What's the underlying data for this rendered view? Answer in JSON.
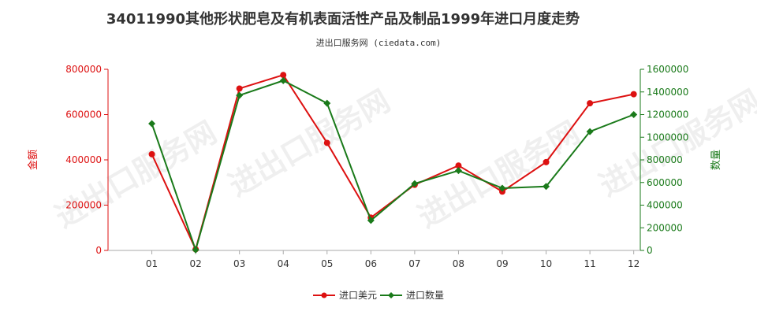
{
  "chart_data": {
    "type": "line",
    "title": "34011990其他形状肥皂及有机表面活性产品及制品1999年进口月度走势",
    "subtitle": "进出口服务网 (ciedata.com)",
    "watermark": "进出口服务网",
    "categories": [
      "01",
      "02",
      "03",
      "04",
      "05",
      "06",
      "07",
      "08",
      "09",
      "10",
      "11",
      "12"
    ],
    "ylabel_left": "金额",
    "ylabel_right": "数量",
    "ylim_left": [
      0,
      800000
    ],
    "ylim_right": [
      0,
      1600000
    ],
    "yticks_left": [
      "0",
      "200000",
      "400000",
      "600000",
      "800000"
    ],
    "yticks_right": [
      "0",
      "200000",
      "400000",
      "600000",
      "800000",
      "1000000",
      "1200000",
      "1400000",
      "1600000"
    ],
    "left_color": "#dd1111",
    "right_color": "#1a7a1a",
    "grid": false,
    "legend_position": "bottom-center",
    "series": [
      {
        "name": "进口美元",
        "axis": "left",
        "color": "#dd1111",
        "values": [
          425000,
          5000,
          715000,
          775000,
          475000,
          145000,
          290000,
          375000,
          260000,
          390000,
          650000,
          690000
        ]
      },
      {
        "name": "进口数量",
        "axis": "right",
        "color": "#1a7a1a",
        "values": [
          1120000,
          5000,
          1370000,
          1500000,
          1300000,
          265000,
          590000,
          705000,
          550000,
          565000,
          1050000,
          1200000
        ]
      }
    ]
  }
}
